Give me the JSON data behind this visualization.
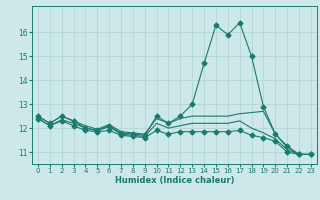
{
  "title": "",
  "xlabel": "Humidex (Indice chaleur)",
  "ylabel": "",
  "bg_color": "#cce8e8",
  "grid_color": "#b8d8d8",
  "line_color": "#1a7a6e",
  "xlim": [
    -0.5,
    23.5
  ],
  "ylim": [
    10.5,
    17.1
  ],
  "yticks": [
    11,
    12,
    13,
    14,
    15,
    16
  ],
  "xticks": [
    0,
    1,
    2,
    3,
    4,
    5,
    6,
    7,
    8,
    9,
    10,
    11,
    12,
    13,
    14,
    15,
    16,
    17,
    18,
    19,
    20,
    21,
    22,
    23
  ],
  "series": [
    {
      "x": [
        0,
        1,
        2,
        3,
        4,
        5,
        6,
        7,
        8,
        9,
        10,
        11,
        12,
        13,
        14,
        15,
        16,
        17,
        18,
        19,
        20,
        21,
        22,
        23
      ],
      "y": [
        12.5,
        12.2,
        12.5,
        12.3,
        12.0,
        11.9,
        12.1,
        11.8,
        11.75,
        11.7,
        12.5,
        12.2,
        12.5,
        13.0,
        14.7,
        16.3,
        15.9,
        16.4,
        15.0,
        12.9,
        11.75,
        11.25,
        10.9,
        10.9
      ],
      "marker": "D",
      "markersize": 2.5
    },
    {
      "x": [
        0,
        1,
        2,
        3,
        4,
        5,
        6,
        7,
        8,
        9,
        10,
        11,
        12,
        13,
        14,
        15,
        16,
        17,
        18,
        19,
        20,
        21,
        22,
        23
      ],
      "y": [
        12.5,
        12.2,
        12.5,
        12.3,
        12.1,
        11.95,
        12.15,
        11.85,
        11.8,
        11.75,
        12.4,
        12.2,
        12.4,
        12.5,
        12.5,
        12.5,
        12.5,
        12.6,
        12.65,
        12.7,
        11.75,
        11.2,
        10.9,
        10.9
      ],
      "marker": null,
      "markersize": 0
    },
    {
      "x": [
        0,
        1,
        2,
        3,
        4,
        5,
        6,
        7,
        8,
        9,
        10,
        11,
        12,
        13,
        14,
        15,
        16,
        17,
        18,
        19,
        20,
        21,
        22,
        23
      ],
      "y": [
        12.4,
        12.1,
        12.35,
        12.2,
        12.0,
        11.9,
        12.05,
        11.75,
        11.7,
        11.65,
        12.2,
        12.0,
        12.1,
        12.2,
        12.2,
        12.2,
        12.2,
        12.3,
        12.0,
        11.8,
        11.55,
        11.1,
        10.9,
        10.9
      ],
      "marker": null,
      "markersize": 0
    },
    {
      "x": [
        0,
        1,
        2,
        3,
        4,
        5,
        6,
        7,
        8,
        9,
        10,
        11,
        12,
        13,
        14,
        15,
        16,
        17,
        18,
        19,
        20,
        21,
        22,
        23
      ],
      "y": [
        12.4,
        12.1,
        12.3,
        12.1,
        11.9,
        11.85,
        11.9,
        11.7,
        11.65,
        11.6,
        11.9,
        11.75,
        11.85,
        11.85,
        11.85,
        11.85,
        11.85,
        11.9,
        11.7,
        11.6,
        11.45,
        11.0,
        10.9,
        10.9
      ],
      "marker": "D",
      "markersize": 2.5
    }
  ]
}
